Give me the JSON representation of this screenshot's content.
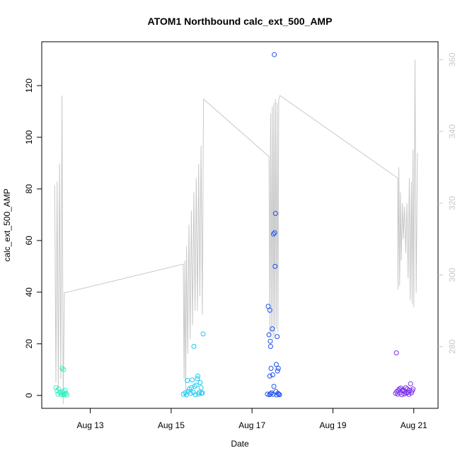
{
  "chart_data": {
    "type": "scatter",
    "title": "ATOM1 Northbound calc_ext_500_AMP",
    "xlabel": "Date",
    "ylabel": "calc_ext_500_AMP",
    "x_ticks": [
      {
        "label": "Aug 13",
        "day": 13
      },
      {
        "label": "Aug 15",
        "day": 15
      },
      {
        "label": "Aug 17",
        "day": 17
      },
      {
        "label": "Aug 19",
        "day": 19
      },
      {
        "label": "Aug 21",
        "day": 21
      }
    ],
    "xlim_days": [
      11.8,
      21.6
    ],
    "ylim": [
      -5,
      137
    ],
    "y_ticks": [
      0,
      20,
      40,
      60,
      80,
      100,
      120
    ],
    "y2lim": [
      262.8,
      365
    ],
    "y2_ticks": [
      280,
      300,
      320,
      340,
      360
    ],
    "grid": false,
    "scatter_series": [
      {
        "color": "#2ff0c0",
        "points": [
          [
            12.15,
            3.0
          ],
          [
            12.18,
            1.8
          ],
          [
            12.2,
            0.5
          ],
          [
            12.22,
            2.5
          ],
          [
            12.25,
            1.2
          ],
          [
            12.28,
            0.3
          ],
          [
            12.3,
            0.9
          ],
          [
            12.32,
            1.5
          ],
          [
            12.34,
            0.2
          ],
          [
            12.36,
            0.6
          ],
          [
            12.38,
            2.0
          ],
          [
            12.4,
            0.8
          ],
          [
            12.42,
            0.2
          ],
          [
            12.3,
            10.5
          ],
          [
            12.34,
            10.0
          ]
        ]
      },
      {
        "color": "#20c8f0",
        "points": [
          [
            15.3,
            0.5
          ],
          [
            15.35,
            1.0
          ],
          [
            15.38,
            0.2
          ],
          [
            15.4,
            5.8
          ],
          [
            15.42,
            1.5
          ],
          [
            15.45,
            2.5
          ],
          [
            15.48,
            0.8
          ],
          [
            15.5,
            3.0
          ],
          [
            15.52,
            6.0
          ],
          [
            15.55,
            1.2
          ],
          [
            15.56,
            19.0
          ],
          [
            15.58,
            3.5
          ],
          [
            15.6,
            0.3
          ],
          [
            15.62,
            4.0
          ],
          [
            15.65,
            6.5
          ],
          [
            15.66,
            7.5
          ],
          [
            15.68,
            0.6
          ],
          [
            15.7,
            1.2
          ],
          [
            15.72,
            5.0
          ],
          [
            15.74,
            3.0
          ],
          [
            15.75,
            0.8
          ],
          [
            15.77,
            1.0
          ],
          [
            15.79,
            23.8
          ]
        ]
      },
      {
        "color": "#2050f0",
        "points": [
          [
            17.38,
            0.5
          ],
          [
            17.4,
            34.5
          ],
          [
            17.42,
            23.5
          ],
          [
            17.43,
            0.3
          ],
          [
            17.44,
            33.0
          ],
          [
            17.45,
            21.0
          ],
          [
            17.46,
            19.0
          ],
          [
            17.47,
            10.5
          ],
          [
            17.48,
            1.0
          ],
          [
            17.5,
            25.8
          ],
          [
            17.51,
            8.0
          ],
          [
            17.52,
            0.4
          ],
          [
            17.53,
            62.5
          ],
          [
            17.54,
            3.5
          ],
          [
            17.55,
            132.0
          ],
          [
            17.56,
            63.0
          ],
          [
            17.57,
            50.0
          ],
          [
            17.58,
            70.5
          ],
          [
            17.59,
            1.5
          ],
          [
            17.6,
            12.0
          ],
          [
            17.61,
            0.2
          ],
          [
            17.62,
            22.8
          ],
          [
            17.63,
            9.5
          ],
          [
            17.64,
            0.8
          ],
          [
            17.65,
            10.5
          ],
          [
            17.66,
            0.5
          ],
          [
            17.68,
            0.3
          ],
          [
            17.44,
            7.5
          ],
          [
            17.46,
            0.6
          ]
        ]
      },
      {
        "color": "#7a2ef0",
        "points": [
          [
            20.55,
            0.8
          ],
          [
            20.57,
            16.5
          ],
          [
            20.58,
            1.5
          ],
          [
            20.6,
            0.5
          ],
          [
            20.62,
            2.0
          ],
          [
            20.64,
            2.5
          ],
          [
            20.66,
            1.0
          ],
          [
            20.68,
            2.8
          ],
          [
            20.7,
            0.3
          ],
          [
            20.72,
            1.8
          ],
          [
            20.74,
            2.2
          ],
          [
            20.76,
            0.6
          ],
          [
            20.78,
            1.5
          ],
          [
            20.8,
            3.0
          ],
          [
            20.82,
            0.9
          ],
          [
            20.84,
            2.5
          ],
          [
            20.86,
            1.2
          ],
          [
            20.88,
            0.4
          ],
          [
            20.9,
            2.0
          ],
          [
            20.92,
            4.5
          ],
          [
            20.94,
            1.0
          ],
          [
            20.96,
            1.8
          ],
          [
            20.98,
            2.5
          ]
        ]
      }
    ],
    "line_series": {
      "color": "#c8c8c8",
      "axis": "right",
      "points": [
        [
          12.12,
          325
        ],
        [
          12.15,
          270
        ],
        [
          12.18,
          326
        ],
        [
          12.21,
          268
        ],
        [
          12.24,
          331
        ],
        [
          12.27,
          271
        ],
        [
          12.3,
          350
        ],
        [
          12.33,
          264
        ],
        [
          12.36,
          295
        ],
        [
          15.3,
          303
        ],
        [
          15.32,
          271
        ],
        [
          15.34,
          304
        ],
        [
          15.36,
          266
        ],
        [
          15.38,
          308
        ],
        [
          15.41,
          278
        ],
        [
          15.44,
          314
        ],
        [
          15.47,
          282
        ],
        [
          15.5,
          318
        ],
        [
          15.53,
          286
        ],
        [
          15.56,
          323
        ],
        [
          15.59,
          290
        ],
        [
          15.62,
          327
        ],
        [
          15.65,
          290
        ],
        [
          15.68,
          331
        ],
        [
          15.71,
          294
        ],
        [
          15.74,
          336
        ],
        [
          15.77,
          289
        ],
        [
          15.8,
          349
        ],
        [
          17.42,
          333
        ],
        [
          17.44,
          283
        ],
        [
          17.46,
          345
        ],
        [
          17.48,
          284
        ],
        [
          17.5,
          347
        ],
        [
          17.52,
          282
        ],
        [
          17.54,
          348
        ],
        [
          17.56,
          283
        ],
        [
          17.58,
          349
        ],
        [
          17.6,
          285
        ],
        [
          17.62,
          348
        ],
        [
          17.64,
          284
        ],
        [
          17.66,
          349
        ],
        [
          17.69,
          350
        ],
        [
          20.6,
          327
        ],
        [
          20.61,
          296
        ],
        [
          20.63,
          330
        ],
        [
          20.65,
          297
        ],
        [
          20.67,
          323
        ],
        [
          20.69,
          304
        ],
        [
          20.72,
          320
        ],
        [
          20.74,
          310
        ],
        [
          20.77,
          319
        ],
        [
          20.8,
          306
        ],
        [
          20.83,
          320
        ],
        [
          20.86,
          299
        ],
        [
          20.89,
          327
        ],
        [
          20.91,
          293
        ],
        [
          20.94,
          326
        ],
        [
          20.96,
          292
        ],
        [
          20.98,
          335
        ],
        [
          21.0,
          291
        ],
        [
          21.03,
          360
        ],
        [
          21.06,
          295
        ],
        [
          21.09,
          334
        ]
      ]
    }
  }
}
